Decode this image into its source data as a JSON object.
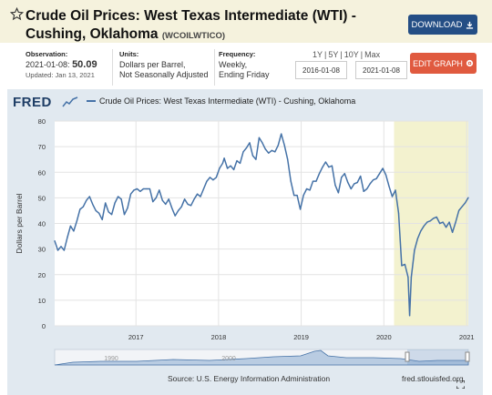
{
  "header": {
    "title": "Crude Oil Prices: West Texas Intermediate (WTI) - Cushing, Oklahoma",
    "series_id": "(WCOILWTICO)",
    "download_label": "DOWNLOAD"
  },
  "meta": {
    "observation_label": "Observation:",
    "observation_date": "2021-01-08:",
    "observation_value": "50.09",
    "updated": "Updated: Jan 13, 2021",
    "units_label": "Units:",
    "units_line1": "Dollars per Barrel,",
    "units_line2": "Not Seasonally Adjusted",
    "frequency_label": "Frequency:",
    "frequency_line1": "Weekly,",
    "frequency_line2": "Ending Friday"
  },
  "controls": {
    "range_1y": "1Y",
    "range_5y": "5Y",
    "range_10y": "10Y",
    "range_max": "Max",
    "start_date": "2016-01-08",
    "end_date": "2021-01-08",
    "edit_label": "EDIT GRAPH"
  },
  "branding": {
    "logo": "FRED"
  },
  "footer": {
    "source": "Source: U.S. Energy Information Administration",
    "url": "fred.stlouisfed.org"
  },
  "colors": {
    "line": "#4572a7",
    "recession": "#f3f2cf",
    "accent": "#244e85",
    "edit": "#e05a3f"
  },
  "navigator": {
    "labels": [
      "1990",
      "2000"
    ]
  },
  "chart_data": {
    "type": "line",
    "title": "",
    "series": [
      {
        "name": "Crude Oil Prices: West Texas Intermediate (WTI) - Cushing, Oklahoma",
        "points": [
          [
            "2016-01-08",
            33.2
          ],
          [
            "2016-01-22",
            29.5
          ],
          [
            "2016-02-05",
            31.0
          ],
          [
            "2016-02-19",
            29.5
          ],
          [
            "2016-03-04",
            34.5
          ],
          [
            "2016-03-18",
            39.0
          ],
          [
            "2016-04-01",
            37.0
          ],
          [
            "2016-04-15",
            41.0
          ],
          [
            "2016-04-29",
            45.5
          ],
          [
            "2016-05-13",
            46.5
          ],
          [
            "2016-05-27",
            49.0
          ],
          [
            "2016-06-10",
            50.5
          ],
          [
            "2016-06-24",
            47.5
          ],
          [
            "2016-07-08",
            45.0
          ],
          [
            "2016-07-22",
            44.0
          ],
          [
            "2016-08-05",
            41.5
          ],
          [
            "2016-08-19",
            48.0
          ],
          [
            "2016-09-02",
            44.5
          ],
          [
            "2016-09-16",
            43.5
          ],
          [
            "2016-09-30",
            48.0
          ],
          [
            "2016-10-14",
            50.5
          ],
          [
            "2016-10-28",
            49.5
          ],
          [
            "2016-11-11",
            43.5
          ],
          [
            "2016-11-25",
            46.0
          ],
          [
            "2016-12-09",
            51.5
          ],
          [
            "2016-12-23",
            53.0
          ],
          [
            "2017-01-06",
            53.5
          ],
          [
            "2017-01-20",
            52.5
          ],
          [
            "2017-02-03",
            53.5
          ],
          [
            "2017-02-17",
            53.5
          ],
          [
            "2017-03-03",
            53.5
          ],
          [
            "2017-03-17",
            48.5
          ],
          [
            "2017-03-31",
            50.0
          ],
          [
            "2017-04-14",
            53.0
          ],
          [
            "2017-04-28",
            49.0
          ],
          [
            "2017-05-12",
            47.5
          ],
          [
            "2017-05-26",
            49.5
          ],
          [
            "2017-06-09",
            46.0
          ],
          [
            "2017-06-23",
            43.0
          ],
          [
            "2017-07-07",
            45.0
          ],
          [
            "2017-07-21",
            46.5
          ],
          [
            "2017-08-04",
            49.5
          ],
          [
            "2017-08-18",
            47.5
          ],
          [
            "2017-09-01",
            47.0
          ],
          [
            "2017-09-15",
            49.5
          ],
          [
            "2017-09-29",
            51.5
          ],
          [
            "2017-10-13",
            50.5
          ],
          [
            "2017-10-27",
            53.5
          ],
          [
            "2017-11-10",
            56.5
          ],
          [
            "2017-11-24",
            58.0
          ],
          [
            "2017-12-08",
            57.0
          ],
          [
            "2017-12-22",
            58.0
          ],
          [
            "2018-01-05",
            61.5
          ],
          [
            "2018-01-19",
            63.5
          ],
          [
            "2018-01-26",
            65.5
          ],
          [
            "2018-02-09",
            61.5
          ],
          [
            "2018-02-23",
            62.5
          ],
          [
            "2018-03-09",
            61.0
          ],
          [
            "2018-03-23",
            64.5
          ],
          [
            "2018-04-06",
            63.5
          ],
          [
            "2018-04-20",
            68.0
          ],
          [
            "2018-05-04",
            69.5
          ],
          [
            "2018-05-18",
            71.5
          ],
          [
            "2018-06-01",
            66.5
          ],
          [
            "2018-06-15",
            65.0
          ],
          [
            "2018-06-29",
            73.5
          ],
          [
            "2018-07-13",
            71.5
          ],
          [
            "2018-07-27",
            69.0
          ],
          [
            "2018-08-10",
            67.5
          ],
          [
            "2018-08-24",
            68.5
          ],
          [
            "2018-09-07",
            68.0
          ],
          [
            "2018-09-21",
            70.5
          ],
          [
            "2018-10-05",
            75.0
          ],
          [
            "2018-10-19",
            70.5
          ],
          [
            "2018-11-02",
            65.0
          ],
          [
            "2018-11-16",
            56.5
          ],
          [
            "2018-11-30",
            51.0
          ],
          [
            "2018-12-14",
            51.0
          ],
          [
            "2018-12-28",
            45.5
          ],
          [
            "2019-01-11",
            51.0
          ],
          [
            "2019-01-25",
            53.5
          ],
          [
            "2019-02-08",
            53.0
          ],
          [
            "2019-02-22",
            56.5
          ],
          [
            "2019-03-08",
            56.5
          ],
          [
            "2019-03-22",
            59.5
          ],
          [
            "2019-04-05",
            62.0
          ],
          [
            "2019-04-19",
            64.0
          ],
          [
            "2019-05-03",
            62.0
          ],
          [
            "2019-05-17",
            62.5
          ],
          [
            "2019-05-31",
            55.0
          ],
          [
            "2019-06-14",
            52.0
          ],
          [
            "2019-06-28",
            58.0
          ],
          [
            "2019-07-12",
            59.5
          ],
          [
            "2019-07-26",
            56.0
          ],
          [
            "2019-08-09",
            53.5
          ],
          [
            "2019-08-23",
            55.5
          ],
          [
            "2019-09-06",
            56.0
          ],
          [
            "2019-09-20",
            58.5
          ],
          [
            "2019-10-04",
            52.5
          ],
          [
            "2019-10-18",
            53.5
          ],
          [
            "2019-11-01",
            55.5
          ],
          [
            "2019-11-15",
            57.0
          ],
          [
            "2019-11-29",
            57.5
          ],
          [
            "2019-12-13",
            59.5
          ],
          [
            "2019-12-27",
            61.5
          ],
          [
            "2020-01-10",
            59.0
          ],
          [
            "2020-01-24",
            54.5
          ],
          [
            "2020-02-07",
            50.5
          ],
          [
            "2020-02-21",
            53.0
          ],
          [
            "2020-03-06",
            44.0
          ],
          [
            "2020-03-20",
            23.5
          ],
          [
            "2020-04-03",
            24.0
          ],
          [
            "2020-04-17",
            19.0
          ],
          [
            "2020-04-24",
            4.0
          ],
          [
            "2020-05-01",
            19.0
          ],
          [
            "2020-05-15",
            29.5
          ],
          [
            "2020-05-29",
            34.0
          ],
          [
            "2020-06-12",
            37.0
          ],
          [
            "2020-06-26",
            39.0
          ],
          [
            "2020-07-10",
            40.5
          ],
          [
            "2020-07-24",
            41.0
          ],
          [
            "2020-08-07",
            42.0
          ],
          [
            "2020-08-21",
            42.5
          ],
          [
            "2020-09-04",
            40.0
          ],
          [
            "2020-09-18",
            40.5
          ],
          [
            "2020-10-02",
            38.5
          ],
          [
            "2020-10-16",
            40.5
          ],
          [
            "2020-10-30",
            36.5
          ],
          [
            "2020-11-13",
            40.5
          ],
          [
            "2020-11-27",
            45.0
          ],
          [
            "2020-12-11",
            46.5
          ],
          [
            "2020-12-25",
            48.0
          ],
          [
            "2021-01-08",
            50.09
          ]
        ]
      }
    ],
    "ylabel": "Dollars per Barrel",
    "xlabel": "",
    "ylim": [
      0,
      80
    ],
    "yticks": [
      0,
      10,
      20,
      30,
      40,
      50,
      60,
      70,
      80
    ],
    "xlim": [
      "2016-01-08",
      "2021-01-08"
    ],
    "xticks": [
      "2017",
      "2018",
      "2019",
      "2020",
      "2021"
    ],
    "recession": [
      "2020-02-15",
      "2021-01-08"
    ],
    "grid": true,
    "legend": "top-left"
  }
}
